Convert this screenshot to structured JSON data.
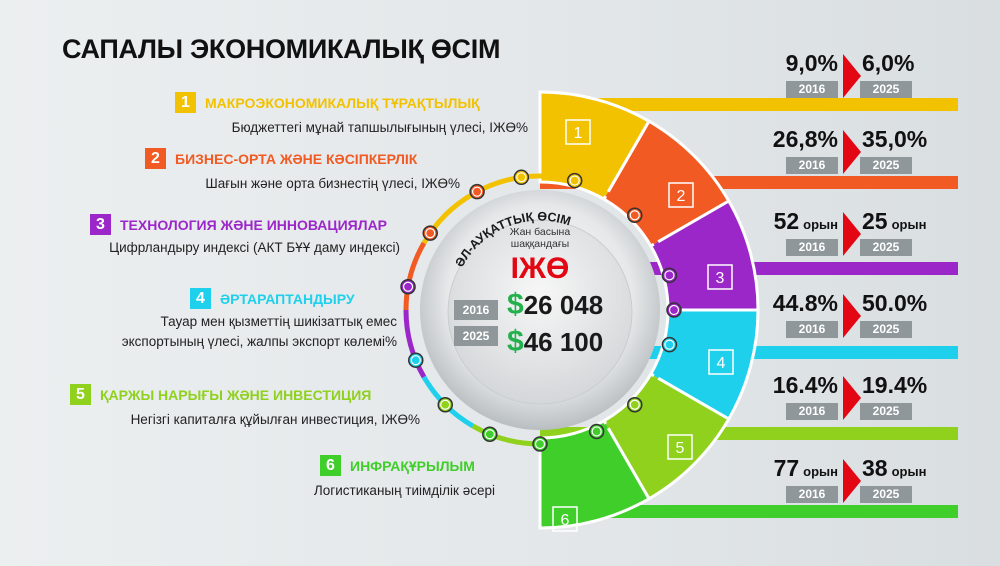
{
  "title": "САПАЛЫ ЭКОНОМИКАЛЫҚ  ӨСІМ",
  "center": {
    "arc_label": "ӘЛ-АУҚАТТЫҚ ӨСІМ",
    "subtitle_line1": "Жан басына",
    "subtitle_line2": "шаққандағы",
    "metric": "ІЖӨ",
    "year_2016": "2016",
    "value_2016": "26 048",
    "year_2025": "2025",
    "value_2025": "46 100",
    "currency": "$"
  },
  "indicators": [
    {
      "num": "1",
      "title": "МАКРОЭКОНОМИКАЛЫҚ ТҰРАҚТЫЛЫҚ",
      "desc": "Бюджеттегі мұнай тапшылығының үлесі, ІЖӨ%",
      "color": "#f2c200",
      "val_2016": "9,0%",
      "val_2025": "6,0%",
      "unit_2016": "",
      "unit_2025": "",
      "year_a": "2016",
      "year_b": "2025"
    },
    {
      "num": "2",
      "title": "БИЗНЕС-ОРТА ЖӘНЕ КӘСІПКЕРЛІК",
      "desc": "Шағын және орта бизнестің үлесі, ІЖӨ%",
      "color": "#f15a22",
      "val_2016": "26,8%",
      "val_2025": "35,0%",
      "unit_2016": "",
      "unit_2025": "",
      "year_a": "2016",
      "year_b": "2025"
    },
    {
      "num": "3",
      "title": "ТЕХНОЛОГИЯ ЖӘНЕ ИННОВАЦИЯЛАР",
      "desc": "Цифрландыру индексі (АКТ БҰҰ даму индексі)",
      "color": "#9b27c9",
      "val_2016": "52",
      "val_2025": "25",
      "unit_2016": "орын",
      "unit_2025": "орын",
      "year_a": "2016",
      "year_b": "2025"
    },
    {
      "num": "4",
      "title": "ӘРТАРАПТАНДЫРУ",
      "desc_line1": "Тауар мен қызметтің шикізаттық емес",
      "desc_line2": "экспортының үлесі, жалпы экспорт көлемі%",
      "color": "#1fd0ec",
      "val_2016": "44.8%",
      "val_2025": "50.0%",
      "unit_2016": "",
      "unit_2025": "",
      "year_a": "2016",
      "year_b": "2025"
    },
    {
      "num": "5",
      "title": "ҚАРЖЫ НАРЫҒЫ ЖӘНЕ ИНВЕСТИЦИЯ",
      "desc": "Негізгі капиталға құйылған инвестиция, ІЖӨ%",
      "color": "#8fd11d",
      "val_2016": "16.4%",
      "val_2025": "19.4%",
      "unit_2016": "",
      "unit_2025": "",
      "year_a": "2016",
      "year_b": "2025"
    },
    {
      "num": "6",
      "title": "ИНФРАҚҰРЫЛЫМ",
      "desc": "Логистиканың тиімділік әсері",
      "color": "#3fce2a",
      "val_2016": "77",
      "val_2025": "38",
      "unit_2016": "орын",
      "unit_2025": "орын",
      "year_a": "2016",
      "year_b": "2025"
    }
  ],
  "colors": {
    "arrow": "#e30613",
    "year_badge": "#8f979b",
    "dollar": "#22b14c",
    "metric": "#e30613"
  }
}
